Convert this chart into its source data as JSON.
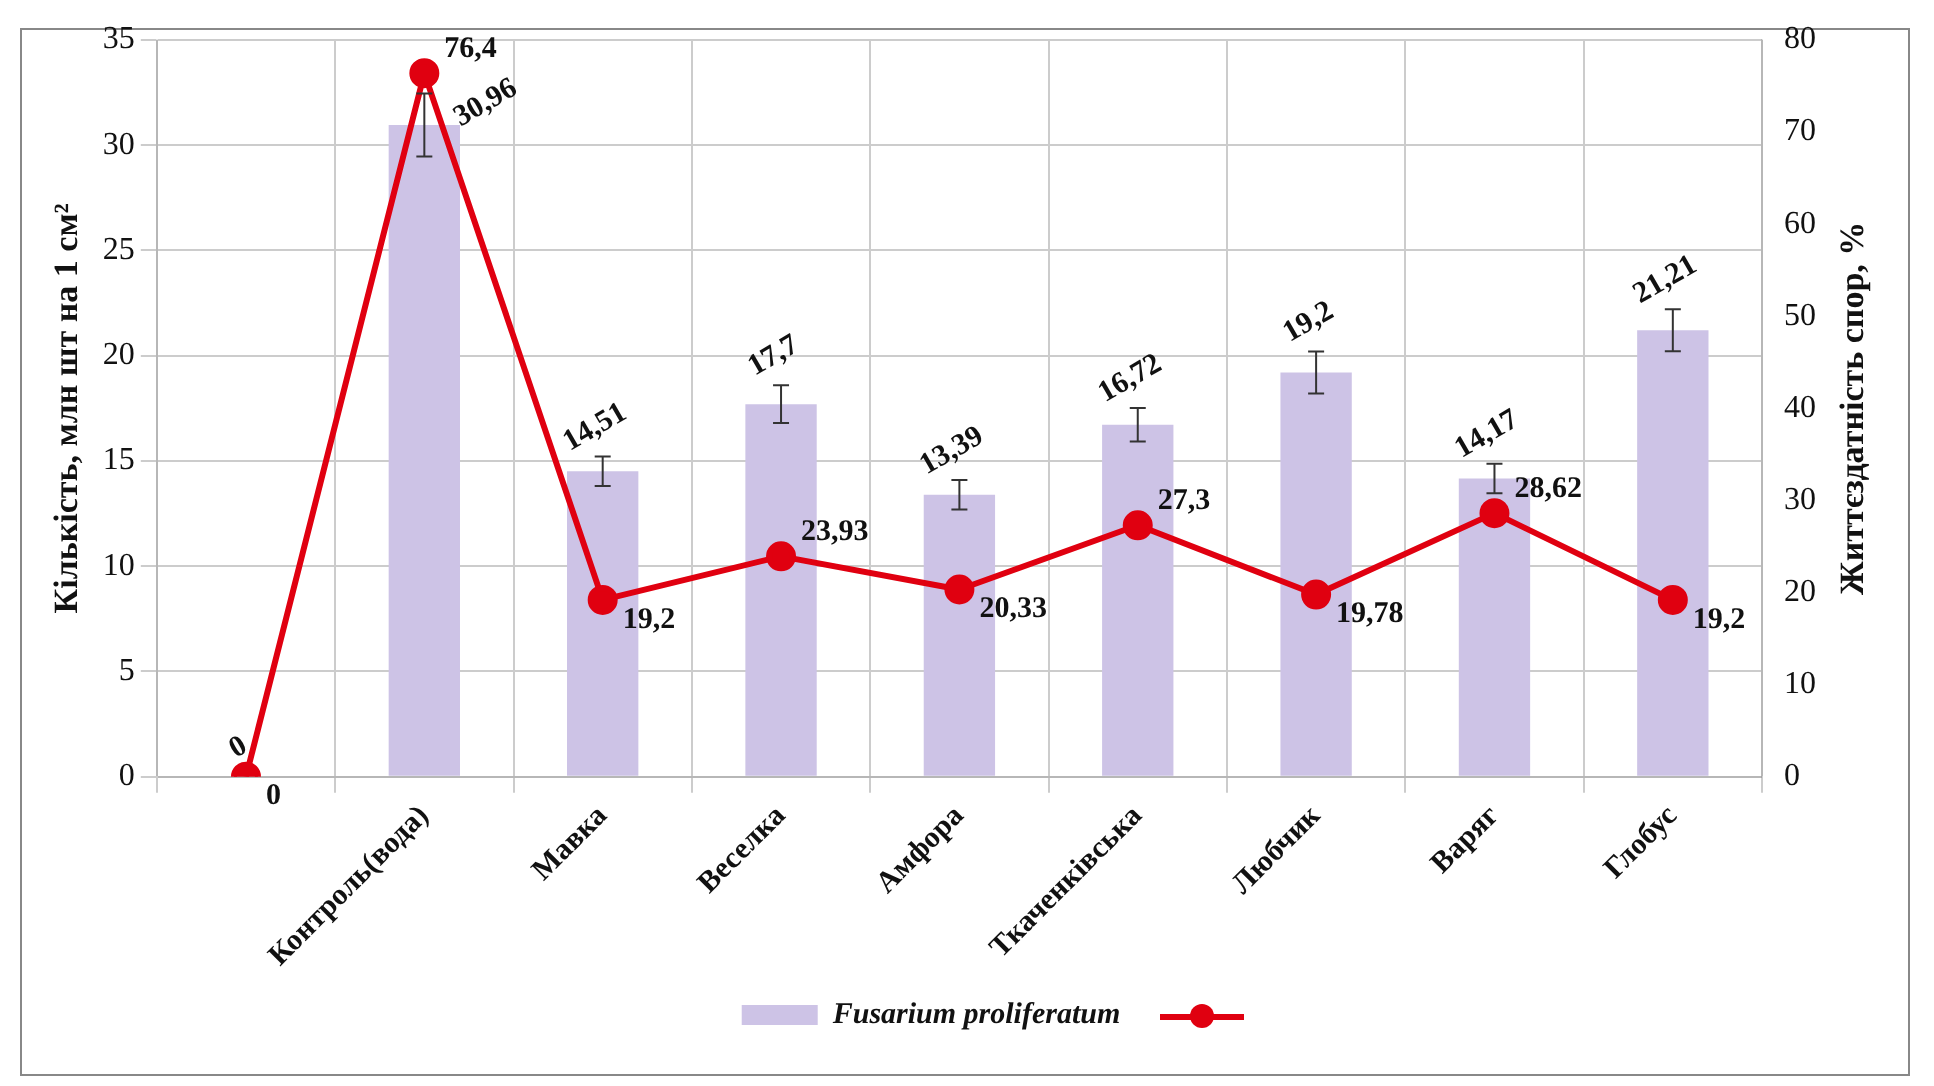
{
  "chart_data": {
    "type": "bar",
    "ylabel": "Кількість, млн шт на 1 см²",
    "y2label": "Життєздатність спор, %",
    "categories": [
      null,
      "Контроль(вода)",
      "Мавка",
      "Веселка",
      "Амфора",
      "Ткаченківська",
      "Любчик",
      "Варяг",
      "Глобус"
    ],
    "series": [
      {
        "name": "Fusarium proliferatum",
        "color": "#cdc3e6",
        "values": [
          0,
          30.96,
          14.51,
          17.7,
          13.39,
          16.72,
          19.2,
          14.17,
          21.21
        ],
        "errors": [
          null,
          1.5,
          0.7,
          0.9,
          0.7,
          0.8,
          1,
          0.7,
          1
        ],
        "value_labels": [
          "0",
          "30,96",
          "14,51",
          "17,7",
          "13,39",
          "16,72",
          "19,2",
          "14,17",
          "21,21"
        ]
      },
      {
        "type": "line",
        "axis": "y2",
        "color": "#e00010",
        "marker": "circle",
        "values": [
          0,
          76.4,
          19.2,
          23.93,
          20.33,
          27.3,
          19.78,
          28.62,
          19.2
        ],
        "value_labels": [
          "0",
          "76,4",
          "19,2",
          "23,93",
          "20,33",
          "27,3",
          "19,78",
          "28,62",
          "19,2"
        ]
      }
    ],
    "ylim": [
      0,
      35
    ],
    "yticks": [
      0,
      5,
      10,
      15,
      20,
      25,
      30,
      35
    ],
    "y2lim": [
      0,
      80
    ],
    "y2ticks": [
      0,
      10,
      20,
      30,
      40,
      50,
      60,
      70,
      80
    ],
    "grid": true,
    "legend": "bottom"
  }
}
